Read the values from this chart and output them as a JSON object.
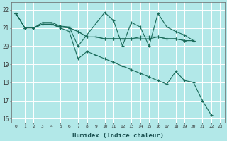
{
  "xlabel": "Humidex (Indice chaleur)",
  "background_color": "#b2e8e8",
  "grid_color": "#ffffff",
  "line_color": "#1a6b5a",
  "xlim": [
    -0.5,
    23.5
  ],
  "ylim": [
    15.8,
    22.4
  ],
  "yticks": [
    16,
    17,
    18,
    19,
    20,
    21,
    22
  ],
  "xticks": [
    0,
    1,
    2,
    3,
    4,
    5,
    6,
    7,
    8,
    9,
    10,
    11,
    12,
    13,
    14,
    15,
    16,
    17,
    18,
    19,
    20,
    21,
    22,
    23
  ],
  "series": [
    [
      21.8,
      21.0,
      21.0,
      21.2,
      21.2,
      21.0,
      20.8,
      19.3,
      19.7,
      19.5,
      19.3,
      19.1,
      18.9,
      18.7,
      18.5,
      18.3,
      18.1,
      17.9,
      18.6,
      18.1,
      18.0,
      17.0,
      16.2
    ],
    [
      21.8,
      21.0,
      21.0,
      21.3,
      21.3,
      21.1,
      21.05,
      20.0,
      null,
      null,
      21.85,
      21.4,
      20.0,
      21.3,
      21.05,
      20.0,
      21.8,
      21.05,
      20.8,
      20.6,
      20.3,
      null,
      null
    ],
    [
      21.8,
      21.0,
      21.0,
      21.2,
      21.2,
      21.05,
      21.0,
      20.8,
      20.5,
      20.5,
      20.4,
      20.4,
      20.4,
      20.4,
      20.4,
      20.4,
      20.5,
      20.4,
      20.4,
      20.3,
      20.3,
      null,
      null
    ],
    [
      21.8,
      21.0,
      21.0,
      21.2,
      21.2,
      21.05,
      21.0,
      20.8,
      20.5,
      20.5,
      20.4,
      20.4,
      20.4,
      20.4,
      20.5,
      20.5,
      20.5,
      20.4,
      20.4,
      20.3,
      20.3,
      null,
      null
    ]
  ]
}
